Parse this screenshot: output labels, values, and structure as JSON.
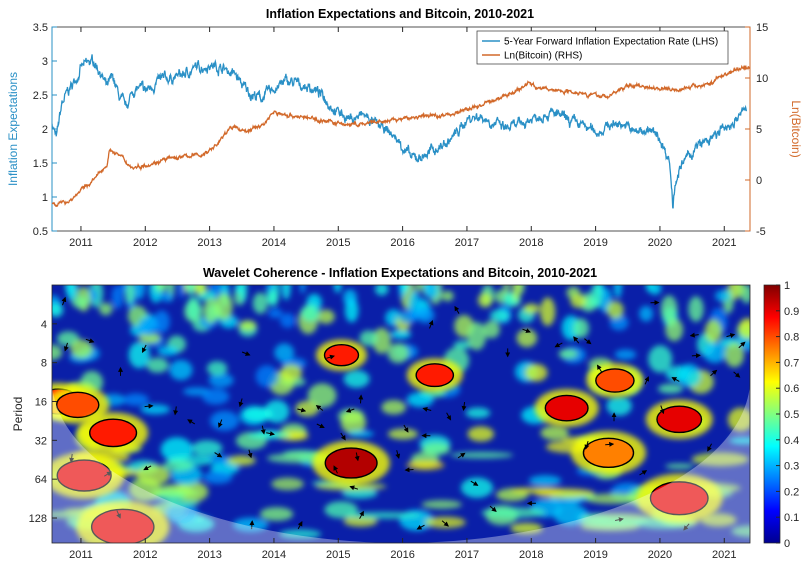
{
  "chart_data": [
    {
      "type": "line",
      "title": "Inflation Expectations and Bitcoin, 2010-2021",
      "xlabel": "",
      "ylabel_left": "Inflation Expectations",
      "ylabel_right": "Ln(Bitcoin)",
      "xlim": [
        2010.55,
        2021.4
      ],
      "x_ticks": [
        "2011",
        "2012",
        "2013",
        "2014",
        "2015",
        "2016",
        "2017",
        "2018",
        "2019",
        "2020",
        "2021"
      ],
      "ylim_left": [
        0.5,
        3.5
      ],
      "y_ticks_left": [
        "0.5",
        "1",
        "1.5",
        "2",
        "2.5",
        "3",
        "3.5"
      ],
      "ylim_right": [
        -5,
        15
      ],
      "y_ticks_right": [
        "-5",
        "0",
        "5",
        "10",
        "15"
      ],
      "legend": [
        "5-Year Forward Inflation Expectation Rate (LHS)",
        "Ln(Bitcoin) (RHS)"
      ],
      "legend_position": "top-right",
      "colors": {
        "lhs": "#2a90c6",
        "rhs": "#d2692a"
      },
      "series": [
        {
          "name": "5-Year Forward Inflation Expectation Rate (LHS)",
          "axis": "left",
          "x": [
            2010.55,
            2010.62,
            2010.7,
            2010.8,
            2010.9,
            2011.0,
            2011.1,
            2011.2,
            2011.3,
            2011.4,
            2011.5,
            2011.6,
            2011.7,
            2011.8,
            2011.9,
            2012.0,
            2012.2,
            2012.4,
            2012.6,
            2012.8,
            2013.0,
            2013.2,
            2013.4,
            2013.5,
            2013.6,
            2013.8,
            2014.0,
            2014.2,
            2014.4,
            2014.6,
            2014.8,
            2015.0,
            2015.2,
            2015.4,
            2015.6,
            2015.8,
            2016.0,
            2016.15,
            2016.3,
            2016.5,
            2016.7,
            2016.9,
            2017.0,
            2017.2,
            2017.4,
            2017.6,
            2017.8,
            2018.0,
            2018.2,
            2018.4,
            2018.6,
            2018.8,
            2019.0,
            2019.2,
            2019.4,
            2019.6,
            2019.8,
            2020.0,
            2020.15,
            2020.2,
            2020.25,
            2020.4,
            2020.6,
            2020.8,
            2021.0,
            2021.2,
            2021.35
          ],
          "y": [
            2.1,
            1.85,
            2.35,
            2.55,
            2.7,
            2.9,
            2.95,
            3.0,
            2.85,
            2.6,
            2.75,
            2.45,
            2.3,
            2.55,
            2.6,
            2.55,
            2.7,
            2.75,
            2.8,
            2.9,
            2.95,
            2.9,
            2.8,
            2.65,
            2.55,
            2.45,
            2.6,
            2.7,
            2.65,
            2.6,
            2.45,
            2.25,
            2.15,
            2.2,
            2.05,
            1.95,
            1.75,
            1.55,
            1.6,
            1.7,
            1.8,
            2.0,
            2.15,
            2.2,
            2.1,
            2.0,
            2.05,
            2.15,
            2.25,
            2.2,
            2.1,
            2.05,
            1.95,
            2.05,
            2.1,
            1.95,
            2.0,
            1.85,
            1.55,
            0.9,
            1.3,
            1.55,
            1.75,
            1.85,
            2.0,
            2.15,
            2.3
          ]
        },
        {
          "name": "Ln(Bitcoin) (RHS)",
          "axis": "right",
          "x": [
            2010.55,
            2010.7,
            2010.85,
            2011.0,
            2011.2,
            2011.4,
            2011.45,
            2011.6,
            2011.8,
            2012.0,
            2012.3,
            2012.6,
            2012.9,
            2013.1,
            2013.25,
            2013.3,
            2013.6,
            2013.85,
            2013.95,
            2014.0,
            2014.3,
            2014.6,
            2014.9,
            2015.0,
            2015.3,
            2015.7,
            2016.0,
            2016.4,
            2016.7,
            2017.0,
            2017.3,
            2017.6,
            2017.85,
            2017.96,
            2018.1,
            2018.4,
            2018.8,
            2018.96,
            2019.2,
            2019.45,
            2019.6,
            2019.9,
            2020.2,
            2020.5,
            2020.8,
            2020.95,
            2021.1,
            2021.3,
            2021.4
          ],
          "y": [
            -2.3,
            -2.3,
            -1.9,
            -1.0,
            0.0,
            1.5,
            3.0,
            2.4,
            1.2,
            1.5,
            2.0,
            2.3,
            2.5,
            3.4,
            4.5,
            5.2,
            4.8,
            5.5,
            6.4,
            6.6,
            6.3,
            6.0,
            5.7,
            5.5,
            5.4,
            5.7,
            6.0,
            6.3,
            6.4,
            6.9,
            7.5,
            8.3,
            9.0,
            9.6,
            9.0,
            8.8,
            8.6,
            8.3,
            8.2,
            9.1,
            9.3,
            9.1,
            8.9,
            9.1,
            9.5,
            10.2,
            10.6,
            11.1,
            10.9
          ]
        }
      ]
    },
    {
      "type": "heatmap",
      "title": "Wavelet Coherence - Inflation Expectations and Bitcoin, 2010-2021",
      "xlabel": "",
      "ylabel": "Period",
      "x_ticks": [
        "2011",
        "2012",
        "2013",
        "2014",
        "2015",
        "2016",
        "2017",
        "2018",
        "2019",
        "2020",
        "2021"
      ],
      "y_ticks": [
        "4",
        "8",
        "16",
        "32",
        "64",
        "128"
      ],
      "period_range": [
        2,
        200
      ],
      "colorbar_ticks": [
        "0",
        "0.1",
        "0.2",
        "0.3",
        "0.4",
        "0.5",
        "0.6",
        "0.7",
        "0.8",
        "0.9",
        "1"
      ],
      "colorbar_range": [
        0,
        1
      ],
      "high_coherence_regions": [
        {
          "x": 2010.65,
          "period": 16,
          "coherence": 0.85
        },
        {
          "x": 2010.95,
          "period": 17,
          "coherence": 0.8
        },
        {
          "x": 2011.5,
          "period": 28,
          "coherence": 0.85
        },
        {
          "x": 2011.05,
          "period": 60,
          "coherence": 0.9
        },
        {
          "x": 2011.65,
          "period": 150,
          "coherence": 0.9
        },
        {
          "x": 2015.2,
          "period": 48,
          "coherence": 0.95
        },
        {
          "x": 2015.05,
          "period": 7,
          "coherence": 0.85
        },
        {
          "x": 2016.5,
          "period": 10,
          "coherence": 0.85
        },
        {
          "x": 2018.55,
          "period": 18,
          "coherence": 0.9
        },
        {
          "x": 2019.3,
          "period": 11,
          "coherence": 0.8
        },
        {
          "x": 2020.3,
          "period": 22,
          "coherence": 0.9
        },
        {
          "x": 2020.3,
          "period": 90,
          "coherence": 0.9
        },
        {
          "x": 2019.2,
          "period": 40,
          "coherence": 0.75
        }
      ]
    }
  ]
}
